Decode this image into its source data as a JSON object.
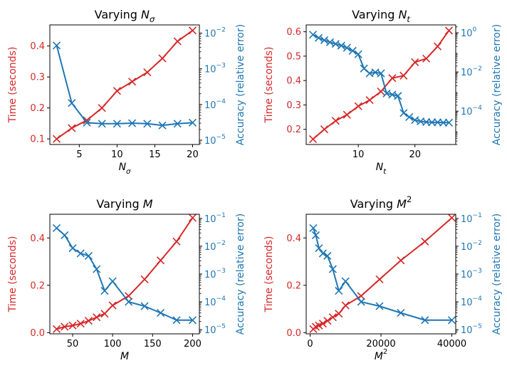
{
  "colors": {
    "time": "#d62728",
    "accuracy": "#1f77b4",
    "axis": "#000000"
  },
  "chart_data": [
    {
      "type": "line",
      "title": "Varying ",
      "title_math": "N",
      "title_sub": "σ",
      "title_sup": "",
      "xlabel_math": "N",
      "xlabel_sub": "σ",
      "xlabel_sup": "",
      "ylabel_left": "Time (seconds)",
      "ylabel_right": "Accuracy (relative error)",
      "xlim": [
        1.1,
        20.9
      ],
      "ylim_left": [
        0.082,
        0.468
      ],
      "ylim_right_log10": [
        -5.12,
        -1.77
      ],
      "xticks": [
        5,
        10,
        15,
        20
      ],
      "xtick_labels": [
        "5",
        "10",
        "15",
        "20"
      ],
      "yticks_left": [
        0.1,
        0.2,
        0.3,
        0.4
      ],
      "ytick_labels_left": [
        "0.1",
        "0.2",
        "0.3",
        "0.4"
      ],
      "yticks_right_log10": [
        -5,
        -4,
        -3,
        -2
      ],
      "ytick_labels_right": [
        {
          "base": "10",
          "exp": "−5"
        },
        {
          "base": "10",
          "exp": "−4"
        },
        {
          "base": "10",
          "exp": "−3"
        },
        {
          "base": "10",
          "exp": "−2"
        }
      ],
      "series": [
        {
          "name": "Time (seconds)",
          "axis": "left",
          "x": [
            2,
            4,
            6,
            8,
            10,
            12,
            14,
            16,
            18,
            20
          ],
          "y": [
            0.1,
            0.135,
            0.16,
            0.2,
            0.255,
            0.285,
            0.315,
            0.36,
            0.415,
            0.45
          ]
        },
        {
          "name": "Accuracy (relative error)",
          "axis": "right",
          "x": [
            2,
            4,
            6,
            8,
            10,
            12,
            14,
            16,
            18,
            20
          ],
          "y": [
            0.0045,
            0.00011,
            3.1e-05,
            2.9e-05,
            2.9e-05,
            3e-05,
            2.9e-05,
            2.6e-05,
            2.9e-05,
            3.1e-05
          ]
        }
      ]
    },
    {
      "type": "line",
      "title": "Varying ",
      "title_math": "N",
      "title_sub": "t",
      "title_sup": "",
      "xlabel_math": "N",
      "xlabel_sub": "t",
      "xlabel_sup": "",
      "ylabel_left": "Time (seconds)",
      "ylabel_right": "Accuracy (relative error)",
      "xlim": [
        0.8,
        27.2
      ],
      "ylim_left": [
        0.138,
        0.628
      ],
      "ylim_right_log10": [
        -5.7,
        0.4
      ],
      "xticks": [
        10,
        20
      ],
      "xtick_labels": [
        "10",
        "20"
      ],
      "yticks_left": [
        0.2,
        0.3,
        0.4,
        0.5,
        0.6
      ],
      "ytick_labels_left": [
        "0.2",
        "0.3",
        "0.4",
        "0.5",
        "0.6"
      ],
      "yticks_right_log10": [
        -4,
        -2,
        0
      ],
      "ytick_labels_right": [
        {
          "base": "10",
          "exp": "−4"
        },
        {
          "base": "10",
          "exp": "−2"
        },
        {
          "base": "10",
          "exp": "0"
        }
      ],
      "series": [
        {
          "name": "Time (seconds)",
          "axis": "left",
          "x": [
            2,
            4,
            6,
            8,
            10,
            12,
            14,
            16,
            18,
            20,
            22,
            24,
            26
          ],
          "y": [
            0.16,
            0.2,
            0.235,
            0.26,
            0.295,
            0.32,
            0.355,
            0.41,
            0.42,
            0.475,
            0.49,
            0.54,
            0.605
          ]
        },
        {
          "name": "Accuracy (relative error)",
          "axis": "right",
          "x": [
            2,
            3,
            4,
            5,
            6,
            7,
            8,
            9,
            10,
            11,
            12,
            13,
            14,
            15,
            16,
            17,
            18,
            19,
            20,
            21,
            22,
            23,
            24,
            25,
            26
          ],
          "y": [
            0.8,
            0.55,
            0.42,
            0.33,
            0.27,
            0.22,
            0.17,
            0.12,
            0.08,
            0.015,
            0.0085,
            0.0095,
            0.0085,
            0.0008,
            0.0007,
            0.0006,
            8e-05,
            5e-05,
            3.5e-05,
            3e-05,
            2.8e-05,
            2.7e-05,
            2.7e-05,
            2.6e-05,
            2.6e-05
          ]
        }
      ]
    },
    {
      "type": "line",
      "title": "Varying ",
      "title_math": "M",
      "title_sub": "",
      "title_sup": "",
      "xlabel_math": "M",
      "xlabel_sub": "",
      "xlabel_sup": "",
      "ylabel_left": "Time (seconds)",
      "ylabel_right": "Accuracy (relative error)",
      "xlim": [
        21.5,
        208.5
      ],
      "ylim_left": [
        -0.005,
        0.5
      ],
      "ylim_right_log10": [
        -5.15,
        -0.85
      ],
      "xticks": [
        50,
        100,
        150,
        200
      ],
      "xtick_labels": [
        "50",
        "100",
        "150",
        "200"
      ],
      "yticks_left": [
        0.0,
        0.2,
        0.4
      ],
      "ytick_labels_left": [
        "0.0",
        "0.2",
        "0.4"
      ],
      "yticks_right_log10": [
        -5,
        -4,
        -3,
        -2,
        -1
      ],
      "ytick_labels_right": [
        {
          "base": "10",
          "exp": "−5"
        },
        {
          "base": "10",
          "exp": "−4"
        },
        {
          "base": "10",
          "exp": "−3"
        },
        {
          "base": "10",
          "exp": "−2"
        },
        {
          "base": "10",
          "exp": "−1"
        }
      ],
      "series": [
        {
          "name": "Time (seconds)",
          "axis": "left",
          "x": [
            30,
            40,
            50,
            60,
            70,
            80,
            90,
            100,
            120,
            140,
            160,
            180,
            200
          ],
          "y": [
            0.015,
            0.025,
            0.03,
            0.038,
            0.05,
            0.065,
            0.08,
            0.115,
            0.155,
            0.225,
            0.305,
            0.385,
            0.485
          ]
        },
        {
          "name": "Accuracy (relative error)",
          "axis": "right",
          "x": [
            30,
            40,
            50,
            60,
            70,
            80,
            90,
            100,
            120,
            140,
            160,
            180,
            200
          ],
          "y": [
            0.045,
            0.025,
            0.0085,
            0.0055,
            0.0045,
            0.0015,
            0.00025,
            0.00055,
            0.0001,
            7e-05,
            4e-05,
            2.2e-05,
            2.2e-05
          ]
        }
      ]
    },
    {
      "type": "line",
      "title": "Varying ",
      "title_math": "M",
      "title_sub": "",
      "title_sup": "2",
      "xlabel_math": "M",
      "xlabel_sub": "",
      "xlabel_sup": "2",
      "ylabel_left": "Time (seconds)",
      "ylabel_right": "Accuracy (relative error)",
      "xlim": [
        -1100,
        41100
      ],
      "ylim_left": [
        -0.005,
        0.5
      ],
      "ylim_right_log10": [
        -5.15,
        -0.85
      ],
      "xticks": [
        0,
        20000,
        40000
      ],
      "xtick_labels": [
        "0",
        "20000",
        "40000"
      ],
      "yticks_left": [
        0.0,
        0.2,
        0.4
      ],
      "ytick_labels_left": [
        "0.0",
        "0.2",
        "0.4"
      ],
      "yticks_right_log10": [
        -5,
        -4,
        -3,
        -2,
        -1
      ],
      "ytick_labels_right": [
        {
          "base": "10",
          "exp": "−5"
        },
        {
          "base": "10",
          "exp": "−4"
        },
        {
          "base": "10",
          "exp": "−3"
        },
        {
          "base": "10",
          "exp": "−2"
        },
        {
          "base": "10",
          "exp": "−1"
        }
      ],
      "series": [
        {
          "name": "Time (seconds)",
          "axis": "left",
          "x": [
            900,
            1600,
            2500,
            3600,
            4900,
            6400,
            8100,
            10000,
            14400,
            19600,
            25600,
            32400,
            40000
          ],
          "y": [
            0.015,
            0.025,
            0.03,
            0.038,
            0.05,
            0.065,
            0.08,
            0.115,
            0.155,
            0.225,
            0.305,
            0.385,
            0.485
          ]
        },
        {
          "name": "Accuracy (relative error)",
          "axis": "right",
          "x": [
            900,
            1600,
            2500,
            3600,
            4900,
            6400,
            8100,
            10000,
            14400,
            19600,
            25600,
            32400,
            40000
          ],
          "y": [
            0.045,
            0.025,
            0.0085,
            0.0055,
            0.0045,
            0.0015,
            0.00025,
            0.00055,
            0.0001,
            7e-05,
            4e-05,
            2.2e-05,
            2.2e-05
          ]
        }
      ]
    }
  ]
}
